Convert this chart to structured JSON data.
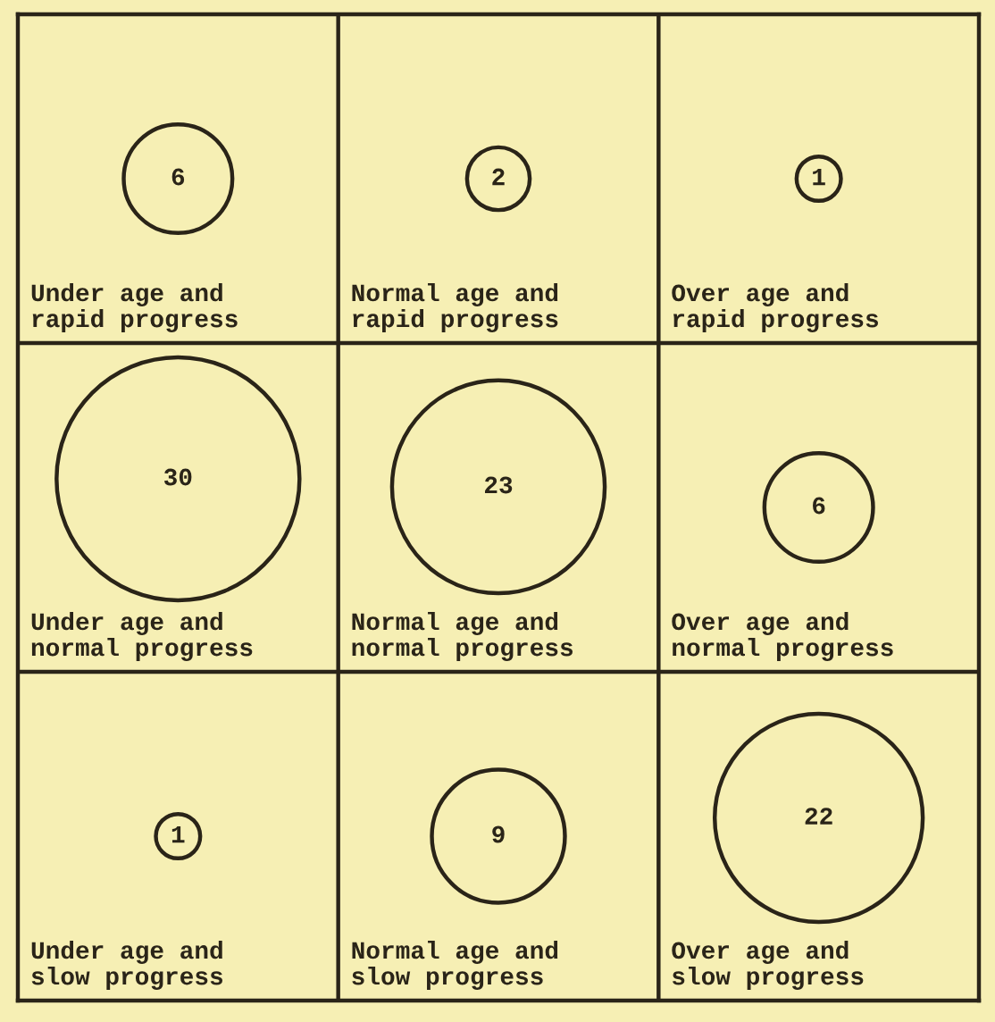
{
  "chart_data": {
    "type": "other",
    "categories": [
      "Under age and\nrapid progress",
      "Normal age and\nrapid progress",
      "Over age and\nrapid progress",
      "Under age and\nnormal progress",
      "Normal age and\nnormal progress",
      "Over age and\nnormal progress",
      "Under age and\nslow progress",
      "Normal age and\nslow progress",
      "Over age and\nslow progress"
    ],
    "values": [
      6,
      2,
      1,
      30,
      23,
      6,
      1,
      9,
      22
    ],
    "data_labels": true
  }
}
